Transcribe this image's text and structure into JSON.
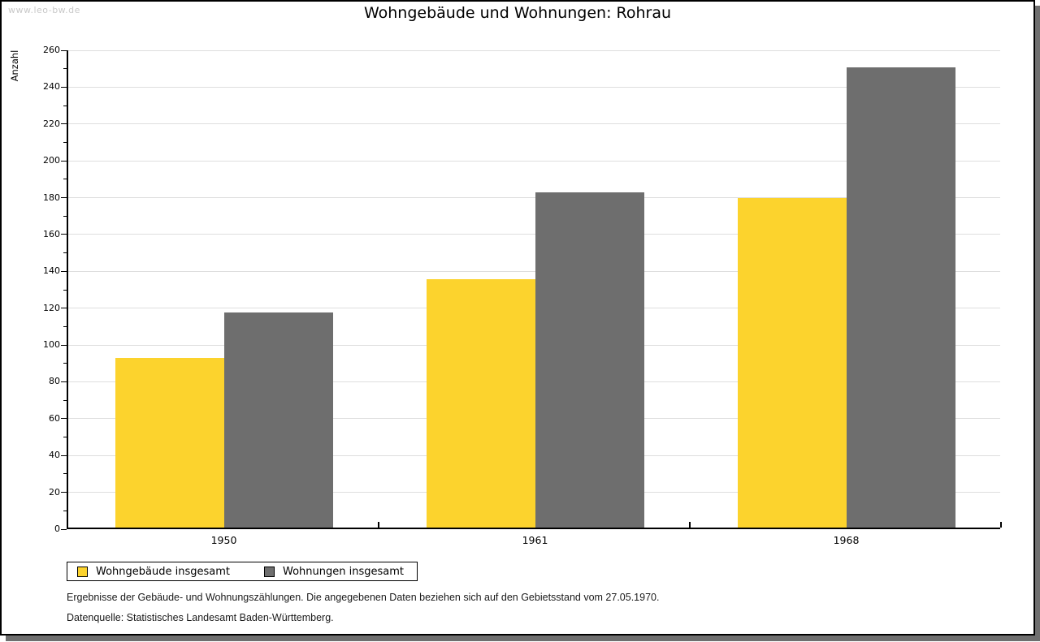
{
  "watermark": "www.leo-bw.de",
  "chart_data": {
    "type": "bar",
    "title": "Wohngebäude und Wohnungen: Rohrau",
    "categories": [
      "1950",
      "1961",
      "1968"
    ],
    "series": [
      {
        "name": "Wohngebäude insgesamt",
        "color": "#FCD32D",
        "values": [
          92,
          135,
          179
        ]
      },
      {
        "name": "Wohnungen insgesamt",
        "color": "#6E6E6E",
        "values": [
          117,
          182,
          250
        ]
      }
    ],
    "xlabel": "",
    "ylabel": "Anzahl",
    "ylim": [
      0,
      260
    ],
    "ytick_step": 20,
    "minor_tick_step": 10,
    "grid": true,
    "legend_position": "bottom-left"
  },
  "footnotes": {
    "line1": "Ergebnisse der Gebäude- und Wohnungszählungen. Die angegebenen Daten beziehen sich auf den Gebietsstand vom 27.05.1970.",
    "line2": "Datenquelle: Statistisches Landesamt Baden-Württemberg."
  }
}
